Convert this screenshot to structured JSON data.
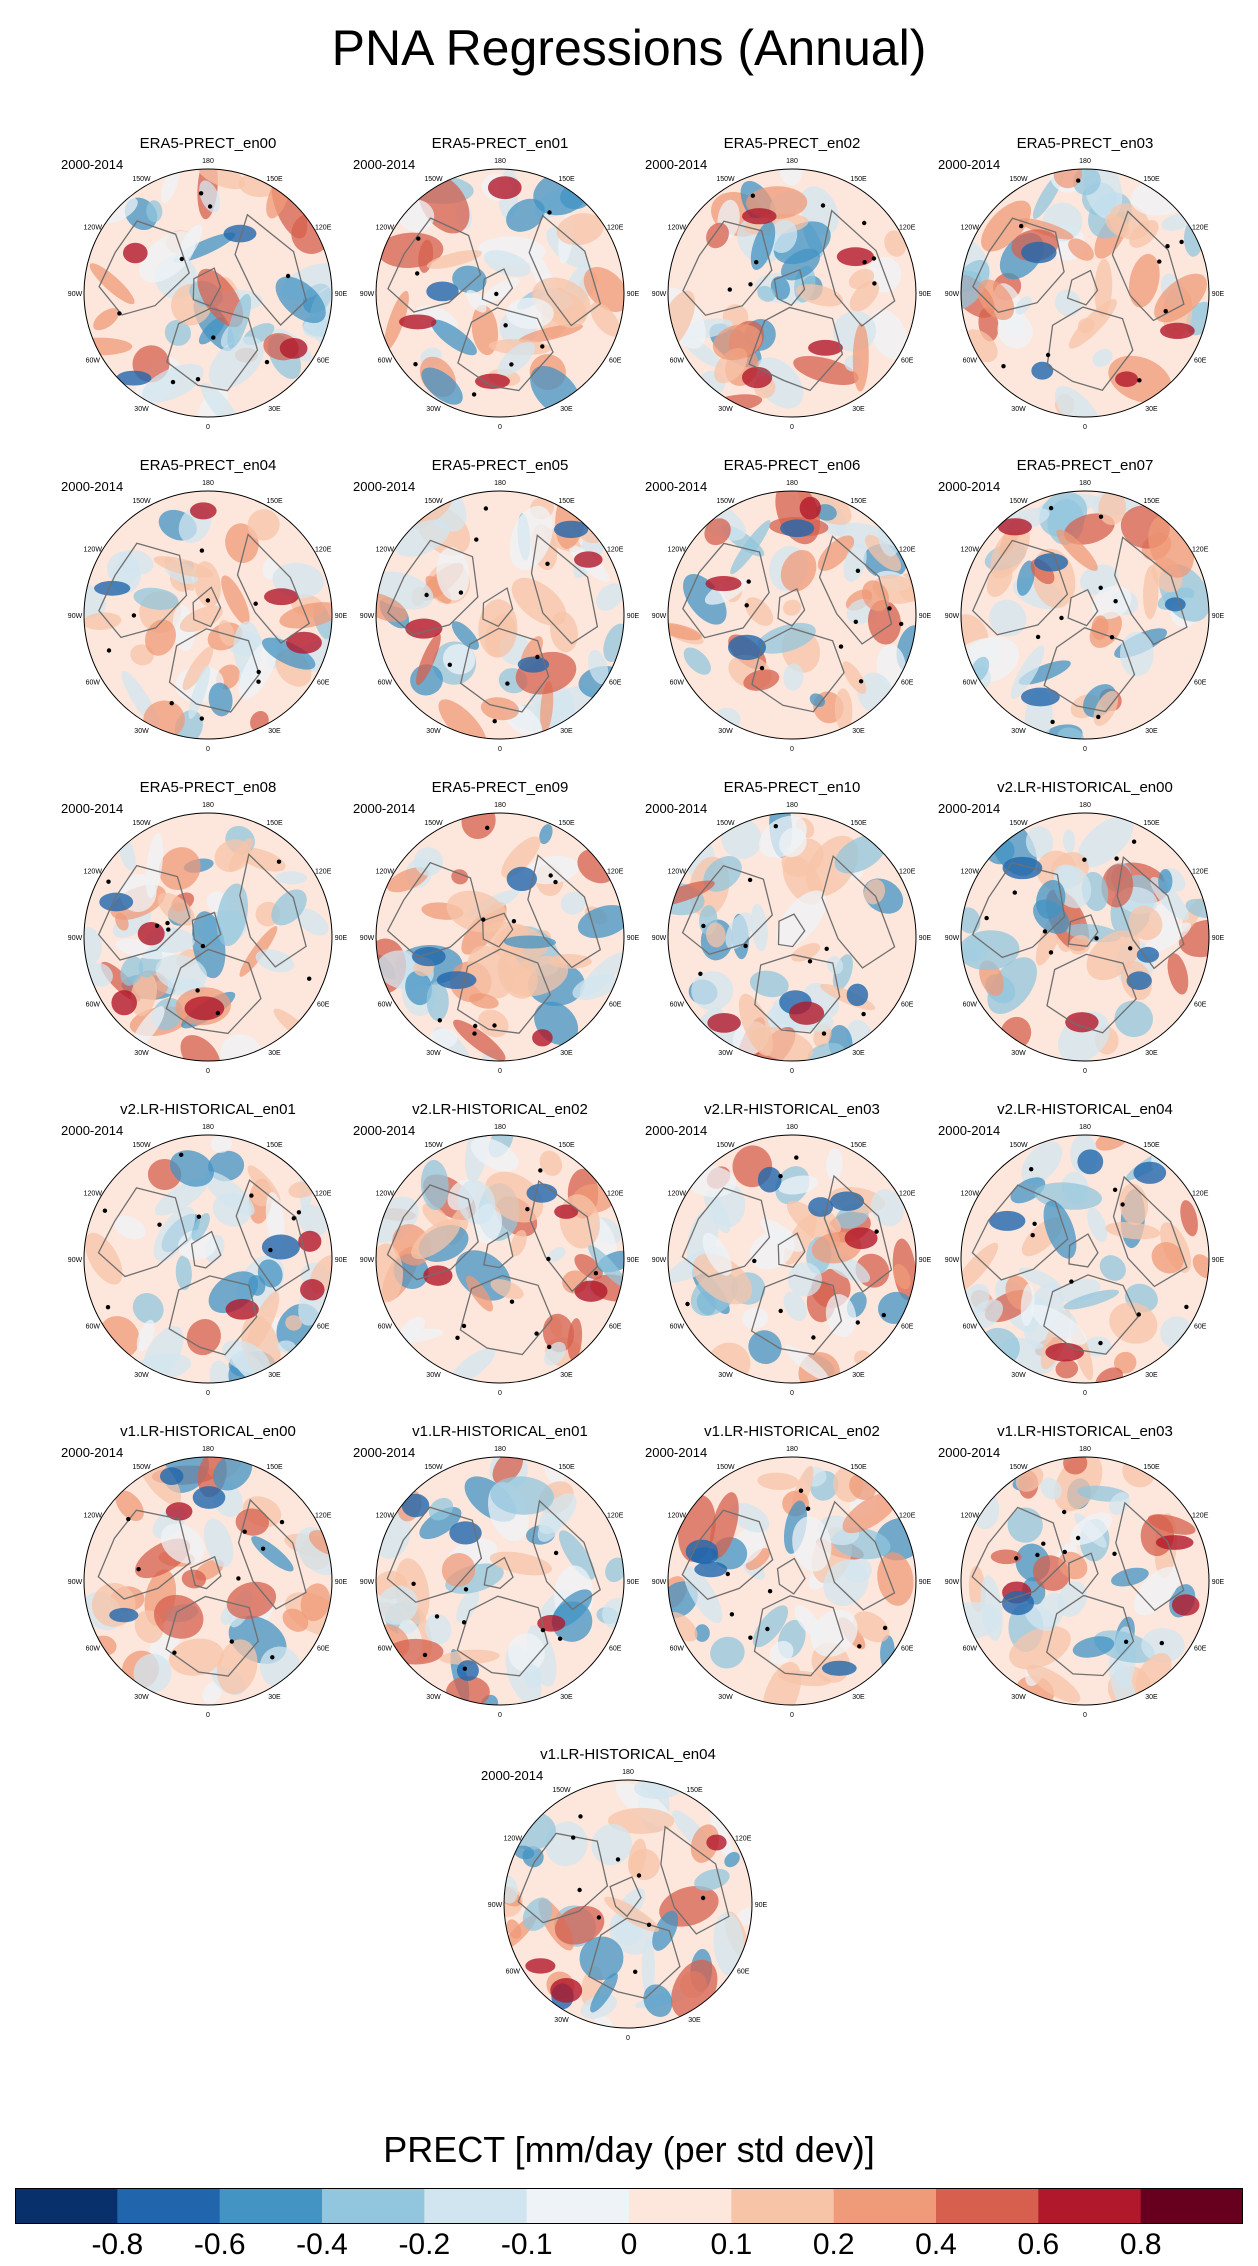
{
  "title": "PNA Regressions (Annual)",
  "chart_data": {
    "type": "polar-map-panels",
    "projection": "north-polar-stereographic",
    "variable": "PRECT",
    "period": "2000-2014",
    "lon_labels": [
      "180",
      "150E",
      "120E",
      "90E",
      "60E",
      "30E",
      "0",
      "30W",
      "60W",
      "90W",
      "120W",
      "150W"
    ],
    "panels": [
      {
        "title": "ERA5-PRECT_en00",
        "years": "2000-2014"
      },
      {
        "title": "ERA5-PRECT_en01",
        "years": "2000-2014"
      },
      {
        "title": "ERA5-PRECT_en02",
        "years": "2000-2014"
      },
      {
        "title": "ERA5-PRECT_en03",
        "years": "2000-2014"
      },
      {
        "title": "ERA5-PRECT_en04",
        "years": "2000-2014"
      },
      {
        "title": "ERA5-PRECT_en05",
        "years": "2000-2014"
      },
      {
        "title": "ERA5-PRECT_en06",
        "years": "2000-2014"
      },
      {
        "title": "ERA5-PRECT_en07",
        "years": "2000-2014"
      },
      {
        "title": "ERA5-PRECT_en08",
        "years": "2000-2014"
      },
      {
        "title": "ERA5-PRECT_en09",
        "years": "2000-2014"
      },
      {
        "title": "ERA5-PRECT_en10",
        "years": "2000-2014"
      },
      {
        "title": "v2.LR-HISTORICAL_en00",
        "years": "2000-2014"
      },
      {
        "title": "v2.LR-HISTORICAL_en01",
        "years": "2000-2014"
      },
      {
        "title": "v2.LR-HISTORICAL_en02",
        "years": "2000-2014"
      },
      {
        "title": "v2.LR-HISTORICAL_en03",
        "years": "2000-2014"
      },
      {
        "title": "v2.LR-HISTORICAL_en04",
        "years": "2000-2014"
      },
      {
        "title": "v1.LR-HISTORICAL_en00",
        "years": "2000-2014"
      },
      {
        "title": "v1.LR-HISTORICAL_en01",
        "years": "2000-2014"
      },
      {
        "title": "v1.LR-HISTORICAL_en02",
        "years": "2000-2014"
      },
      {
        "title": "v1.LR-HISTORICAL_en03",
        "years": "2000-2014"
      },
      {
        "title": "v1.LR-HISTORICAL_en04",
        "years": "2000-2014"
      }
    ],
    "colorbar": {
      "label": "PRECT [mm/day (per std dev)]",
      "colors": [
        "#08306b",
        "#2166ac",
        "#4393c3",
        "#92c5de",
        "#d1e5f0",
        "#eef3f7",
        "#fde7dc",
        "#f7c4a8",
        "#ef9a78",
        "#d6604d",
        "#b2182b",
        "#67001f"
      ],
      "tick_labels": [
        "-0.8",
        "-0.6",
        "-0.4",
        "-0.2",
        "-0.1",
        "0",
        "0.1",
        "0.2",
        "0.4",
        "0.6",
        "0.8"
      ]
    }
  }
}
